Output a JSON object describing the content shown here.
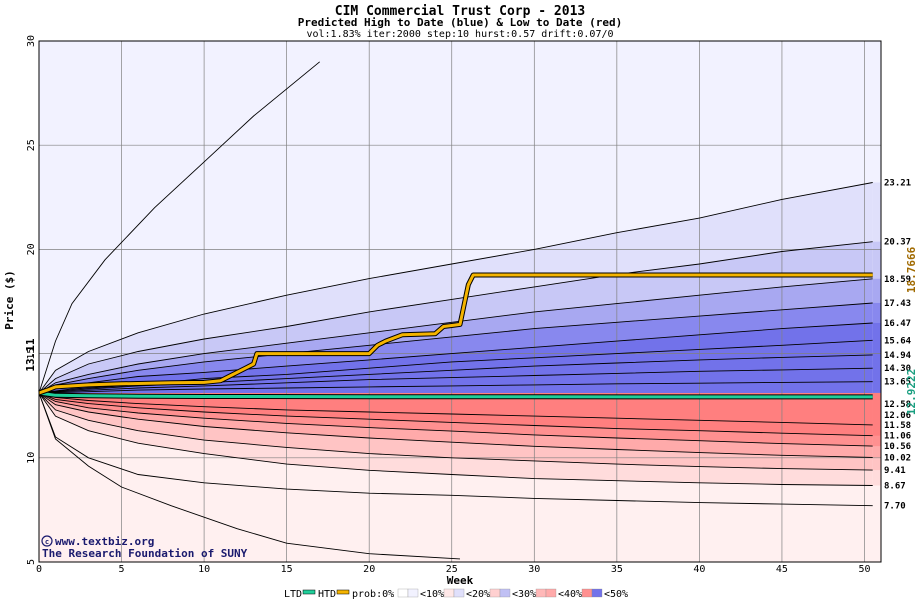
{
  "chart_data": {
    "type": "area",
    "title": "CIM Commercial Trust Corp - 2013",
    "subtitle": "Predicted High to Date (blue) &  Low to Date (red)",
    "params": "vol:1.83% iter:2000 step:10 hurst:0.57 drift:0.07/0",
    "xlabel": "Week",
    "ylabel": "Price ($)",
    "xlim": [
      0,
      51
    ],
    "ylim": [
      5,
      30
    ],
    "xticks": [
      0,
      5,
      10,
      15,
      20,
      25,
      30,
      35,
      40,
      45,
      50
    ],
    "yticks": [
      5,
      10,
      15,
      20,
      25,
      30
    ],
    "grid": true,
    "start_price": 13.11,
    "start_label": "13.11",
    "colors": {
      "htd_bands": [
        "#f2f2ff",
        "#e0e0fb",
        "#c8c8f6",
        "#a8a8f1",
        "#8888ee",
        "#7272ea"
      ],
      "ltd_bands": [
        "#fff0f0",
        "#ffdcdc",
        "#ffc4c4",
        "#ffaaaa",
        "#ff9090",
        "#ff7f7f"
      ],
      "ltd_line": "#1fcf9a",
      "htd_line": "#f5b400",
      "label_orange": "#a06a00",
      "label_teal": "#199f80"
    },
    "upper_bands": [
      {
        "level": "0%",
        "x": [
          0,
          1,
          2,
          4,
          7,
          10,
          13,
          17
        ],
        "y": [
          13.11,
          15.6,
          17.4,
          19.5,
          22.0,
          24.2,
          26.4,
          29.0
        ]
      },
      {
        "level": "10%",
        "x": [
          0,
          1,
          3,
          6,
          10,
          15,
          20,
          25,
          30,
          35,
          40,
          45,
          50.5
        ],
        "y": [
          13.11,
          14.2,
          15.1,
          16.0,
          16.9,
          17.8,
          18.6,
          19.3,
          20.0,
          20.8,
          21.5,
          22.4,
          23.21
        ]
      },
      {
        "level": "20%",
        "x": [
          0,
          1,
          3,
          6,
          10,
          15,
          20,
          25,
          30,
          35,
          40,
          45,
          50.5
        ],
        "y": [
          13.11,
          13.8,
          14.5,
          15.1,
          15.7,
          16.3,
          17.0,
          17.6,
          18.2,
          18.8,
          19.3,
          19.9,
          20.37
        ]
      },
      {
        "level": "30%",
        "x": [
          0,
          1,
          3,
          6,
          10,
          15,
          20,
          25,
          30,
          35,
          40,
          45,
          50.5
        ],
        "y": [
          13.11,
          13.6,
          14.0,
          14.5,
          15.0,
          15.5,
          16.0,
          16.5,
          17.0,
          17.4,
          17.8,
          18.2,
          18.59
        ]
      },
      {
        "level": "40%",
        "x": [
          0,
          1,
          3,
          6,
          10,
          15,
          20,
          25,
          30,
          35,
          40,
          45,
          50.5
        ],
        "y": [
          13.11,
          13.5,
          13.8,
          14.2,
          14.6,
          15.0,
          15.4,
          15.8,
          16.2,
          16.5,
          16.8,
          17.1,
          17.43
        ]
      },
      {
        "level": "50%",
        "x": [
          0,
          1,
          3,
          6,
          10,
          15,
          20,
          25,
          30,
          35,
          40,
          45,
          50.5
        ],
        "y": [
          13.11,
          13.4,
          13.6,
          13.9,
          14.1,
          14.4,
          14.7,
          15.0,
          15.3,
          15.6,
          15.9,
          16.2,
          16.47
        ]
      }
    ],
    "center_lines": [
      {
        "x": [
          0,
          2,
          6,
          10,
          15,
          20,
          25,
          30,
          35,
          40,
          45,
          50.5
        ],
        "y": [
          13.11,
          13.3,
          13.5,
          13.8,
          14.0,
          14.3,
          14.6,
          14.8,
          15.0,
          15.2,
          15.4,
          15.64
        ]
      },
      {
        "x": [
          0,
          2,
          6,
          10,
          15,
          20,
          25,
          30,
          35,
          40,
          45,
          50.5
        ],
        "y": [
          13.11,
          13.25,
          13.45,
          13.6,
          13.8,
          14.0,
          14.2,
          14.4,
          14.55,
          14.7,
          14.82,
          14.94
        ]
      },
      {
        "x": [
          0,
          2,
          6,
          10,
          15,
          20,
          25,
          30,
          35,
          40,
          45,
          50.5
        ],
        "y": [
          13.11,
          13.2,
          13.35,
          13.45,
          13.6,
          13.75,
          13.85,
          13.95,
          14.05,
          14.15,
          14.22,
          14.3
        ]
      },
      {
        "x": [
          0,
          2,
          6,
          10,
          15,
          20,
          25,
          30,
          35,
          40,
          45,
          50.5
        ],
        "y": [
          13.11,
          13.15,
          13.25,
          13.3,
          13.35,
          13.4,
          13.45,
          13.5,
          13.55,
          13.58,
          13.62,
          13.65
        ]
      }
    ],
    "lower_bands": [
      {
        "level": "50%",
        "x": [
          0,
          1,
          3,
          6,
          10,
          15,
          20,
          25,
          30,
          35,
          40,
          45,
          50.5
        ],
        "y": [
          13.11,
          12.9,
          12.75,
          12.6,
          12.45,
          12.3,
          12.2,
          12.1,
          12.0,
          11.9,
          11.8,
          11.7,
          11.58
        ]
      },
      {
        "level": "40%",
        "x": [
          0,
          1,
          3,
          6,
          10,
          15,
          20,
          25,
          30,
          35,
          40,
          45,
          50.5
        ],
        "y": [
          13.11,
          12.8,
          12.6,
          12.4,
          12.2,
          12.0,
          11.85,
          11.7,
          11.55,
          11.4,
          11.3,
          11.18,
          11.06
        ]
      },
      {
        "level": "30%",
        "x": [
          0,
          1,
          3,
          6,
          10,
          15,
          20,
          25,
          30,
          35,
          40,
          45,
          50.5
        ],
        "y": [
          13.11,
          12.7,
          12.4,
          12.15,
          11.9,
          11.65,
          11.45,
          11.28,
          11.1,
          10.95,
          10.82,
          10.68,
          10.56
        ]
      },
      {
        "level": "20%",
        "x": [
          0,
          1,
          3,
          6,
          10,
          15,
          20,
          25,
          30,
          35,
          40,
          45,
          50.5
        ],
        "y": [
          13.11,
          12.55,
          12.2,
          11.85,
          11.5,
          11.2,
          10.95,
          10.75,
          10.55,
          10.4,
          10.25,
          10.12,
          10.02
        ]
      },
      {
        "level": "10%",
        "x": [
          0,
          1,
          3,
          6,
          10,
          15,
          20,
          25,
          30,
          35,
          40,
          45,
          50.5
        ],
        "y": [
          13.11,
          12.3,
          11.8,
          11.3,
          10.85,
          10.5,
          10.2,
          10.0,
          9.85,
          9.7,
          9.58,
          9.48,
          9.41
        ]
      },
      {
        "level": "0%-inner",
        "x": [
          0,
          1,
          3,
          6,
          10,
          15,
          20,
          25,
          30,
          35,
          40,
          45,
          50.5
        ],
        "y": [
          13.11,
          12.0,
          11.3,
          10.7,
          10.2,
          9.7,
          9.4,
          9.2,
          9.0,
          8.9,
          8.8,
          8.72,
          8.67
        ]
      },
      {
        "level": "0%",
        "x": [
          0,
          1,
          3,
          6,
          10,
          15,
          20,
          25,
          30,
          35,
          40,
          45,
          50.5
        ],
        "y": [
          13.11,
          11.0,
          10.0,
          9.2,
          8.8,
          8.5,
          8.3,
          8.2,
          8.05,
          7.95,
          7.85,
          7.78,
          7.7
        ]
      }
    ],
    "lowest_line": {
      "x": [
        0,
        1,
        3,
        5,
        8,
        12,
        15,
        20,
        25.5
      ],
      "y": [
        13.11,
        10.9,
        9.6,
        8.6,
        7.7,
        6.6,
        5.9,
        5.4,
        5.15
      ]
    },
    "ltd_series": {
      "x": [
        0,
        1,
        3,
        6,
        10,
        20,
        30,
        40,
        50.5
      ],
      "y": [
        13.11,
        13.0,
        12.98,
        12.95,
        12.94,
        12.93,
        12.925,
        12.923,
        12.9222
      ]
    },
    "htd_series": {
      "x": [
        0,
        0.5,
        1,
        2,
        3,
        5,
        8,
        10,
        11,
        11.5,
        12,
        12.5,
        13,
        13.2,
        15,
        18,
        20,
        20.5,
        21,
        22,
        24,
        24.5,
        25,
        25.5,
        26,
        26.3,
        30,
        40,
        50.5
      ],
      "y": [
        13.11,
        13.25,
        13.4,
        13.45,
        13.5,
        13.55,
        13.6,
        13.62,
        13.7,
        13.9,
        14.1,
        14.3,
        14.5,
        15.0,
        15.0,
        15.0,
        15.0,
        15.4,
        15.6,
        15.9,
        15.95,
        16.3,
        16.35,
        16.4,
        18.3,
        18.77,
        18.77,
        18.77,
        18.77
      ]
    },
    "right_labels": [
      "23.21",
      "20.37",
      "18.59",
      "17.43",
      "16.47",
      "15.64",
      "14.94",
      "14.30",
      "13.65",
      "12.58",
      "12.06",
      "11.58",
      "11.06",
      "10.56",
      "10.02",
      "9.41",
      "8.67",
      "7.70"
    ],
    "right_label_values": [
      23.21,
      20.37,
      18.59,
      17.43,
      16.47,
      15.64,
      14.94,
      14.3,
      13.65,
      12.58,
      12.06,
      11.58,
      11.06,
      10.56,
      10.02,
      9.41,
      8.67,
      7.7
    ],
    "htd_final_label": "18.7666",
    "htd_final_value": 18.7666,
    "ltd_final_label": "12.9222",
    "ltd_final_value": 12.9222,
    "legend": {
      "placement": "bottom",
      "ltd": "LTD",
      "htd": "HTD",
      "prob": "prob:0%",
      "items": [
        "<10%",
        "<20%",
        "<30%",
        "<40%",
        "<50%"
      ]
    },
    "credit_line1": "www.textbiz.org",
    "credit_line2": "The Research Foundation of SUNY"
  }
}
